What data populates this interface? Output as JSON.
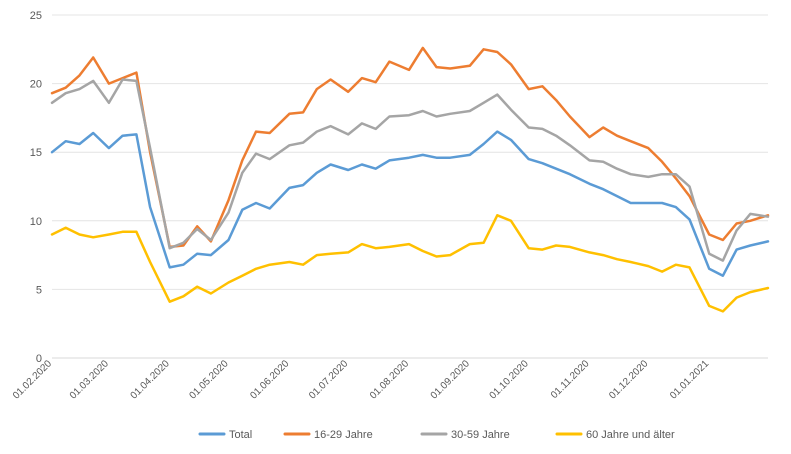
{
  "chart_data": {
    "type": "line",
    "title": "",
    "xlabel": "",
    "ylabel": "",
    "ylim": [
      0,
      25
    ],
    "yticks": [
      0,
      5,
      10,
      15,
      20,
      25
    ],
    "grid": true,
    "legend_position": "bottom",
    "x": [
      "01.02.2020",
      "08.02.2020",
      "15.02.2020",
      "22.02.2020",
      "01.03.2020",
      "08.03.2020",
      "15.03.2020",
      "22.03.2020",
      "01.04.2020",
      "08.04.2020",
      "15.04.2020",
      "22.04.2020",
      "01.05.2020",
      "08.05.2020",
      "15.05.2020",
      "22.05.2020",
      "01.06.2020",
      "08.06.2020",
      "15.06.2020",
      "22.06.2020",
      "01.07.2020",
      "08.07.2020",
      "15.07.2020",
      "22.07.2020",
      "01.08.2020",
      "08.08.2020",
      "15.08.2020",
      "22.08.2020",
      "01.09.2020",
      "08.09.2020",
      "15.09.2020",
      "22.09.2020",
      "01.10.2020",
      "08.10.2020",
      "15.10.2020",
      "22.10.2020",
      "01.11.2020",
      "08.11.2020",
      "15.11.2020",
      "22.11.2020",
      "01.12.2020",
      "08.12.2020",
      "15.12.2020",
      "22.12.2020",
      "01.01.2021",
      "08.01.2021",
      "15.01.2021",
      "22.01.2021",
      "31.01.2021"
    ],
    "x_tick_labels": [
      "01.02.2020",
      "01.03.2020",
      "01.04.2020",
      "01.05.2020",
      "01.06.2020",
      "01.07.2020",
      "01.08.2020",
      "01.09.2020",
      "01.10.2020",
      "01.11.2020",
      "01.12.2020",
      "01.01.2021"
    ],
    "series": [
      {
        "name": "Total",
        "color": "#5B9BD5",
        "values": [
          15.0,
          15.8,
          15.6,
          16.4,
          15.3,
          16.2,
          16.3,
          11.0,
          6.6,
          6.8,
          7.6,
          7.5,
          8.6,
          10.8,
          11.3,
          10.9,
          12.4,
          12.6,
          13.5,
          14.1,
          13.7,
          14.1,
          13.8,
          14.4,
          14.6,
          14.8,
          14.6,
          14.6,
          14.8,
          15.6,
          16.5,
          15.9,
          14.5,
          14.2,
          13.8,
          13.4,
          12.7,
          12.3,
          11.8,
          11.3,
          11.3,
          11.3,
          11.0,
          10.1,
          6.5,
          6.0,
          7.9,
          8.2,
          8.5
        ]
      },
      {
        "name": "16-29 Jahre",
        "color": "#ED7D31",
        "values": [
          19.3,
          19.7,
          20.6,
          21.9,
          20.0,
          20.4,
          20.8,
          15.0,
          8.1,
          8.2,
          9.6,
          8.5,
          11.5,
          14.4,
          16.5,
          16.4,
          17.8,
          17.9,
          19.6,
          20.3,
          19.4,
          20.4,
          20.1,
          21.6,
          21.0,
          22.6,
          21.2,
          21.1,
          21.3,
          22.5,
          22.3,
          21.4,
          19.6,
          19.8,
          18.8,
          17.6,
          16.1,
          16.8,
          16.2,
          15.8,
          15.3,
          14.3,
          13.1,
          11.8,
          9.0,
          8.6,
          9.8,
          10.0,
          10.4
        ]
      },
      {
        "name": "30-59 Jahre",
        "color": "#A5A5A5",
        "values": [
          18.6,
          19.3,
          19.6,
          20.2,
          18.6,
          20.3,
          20.2,
          15.3,
          8.0,
          8.4,
          9.4,
          8.6,
          10.6,
          13.5,
          14.9,
          14.5,
          15.5,
          15.7,
          16.5,
          16.9,
          16.3,
          17.1,
          16.7,
          17.6,
          17.7,
          18.0,
          17.6,
          17.8,
          18.0,
          18.6,
          19.2,
          18.1,
          16.8,
          16.7,
          16.2,
          15.5,
          14.4,
          14.3,
          13.8,
          13.4,
          13.2,
          13.4,
          13.4,
          12.5,
          7.6,
          7.1,
          9.3,
          10.5,
          10.3
        ]
      },
      {
        "name": "60 Jahre und älter",
        "color": "#FFC000",
        "values": [
          9.0,
          9.5,
          9.0,
          8.8,
          9.0,
          9.2,
          9.2,
          7.0,
          4.1,
          4.5,
          5.2,
          4.7,
          5.5,
          6.0,
          6.5,
          6.8,
          7.0,
          6.8,
          7.5,
          7.6,
          7.7,
          8.3,
          8.0,
          8.1,
          8.3,
          7.8,
          7.4,
          7.5,
          8.3,
          8.4,
          10.4,
          10.0,
          8.0,
          7.9,
          8.2,
          8.1,
          7.7,
          7.5,
          7.2,
          7.0,
          6.7,
          6.3,
          6.8,
          6.6,
          3.8,
          3.4,
          4.4,
          4.8,
          5.1
        ]
      }
    ]
  }
}
